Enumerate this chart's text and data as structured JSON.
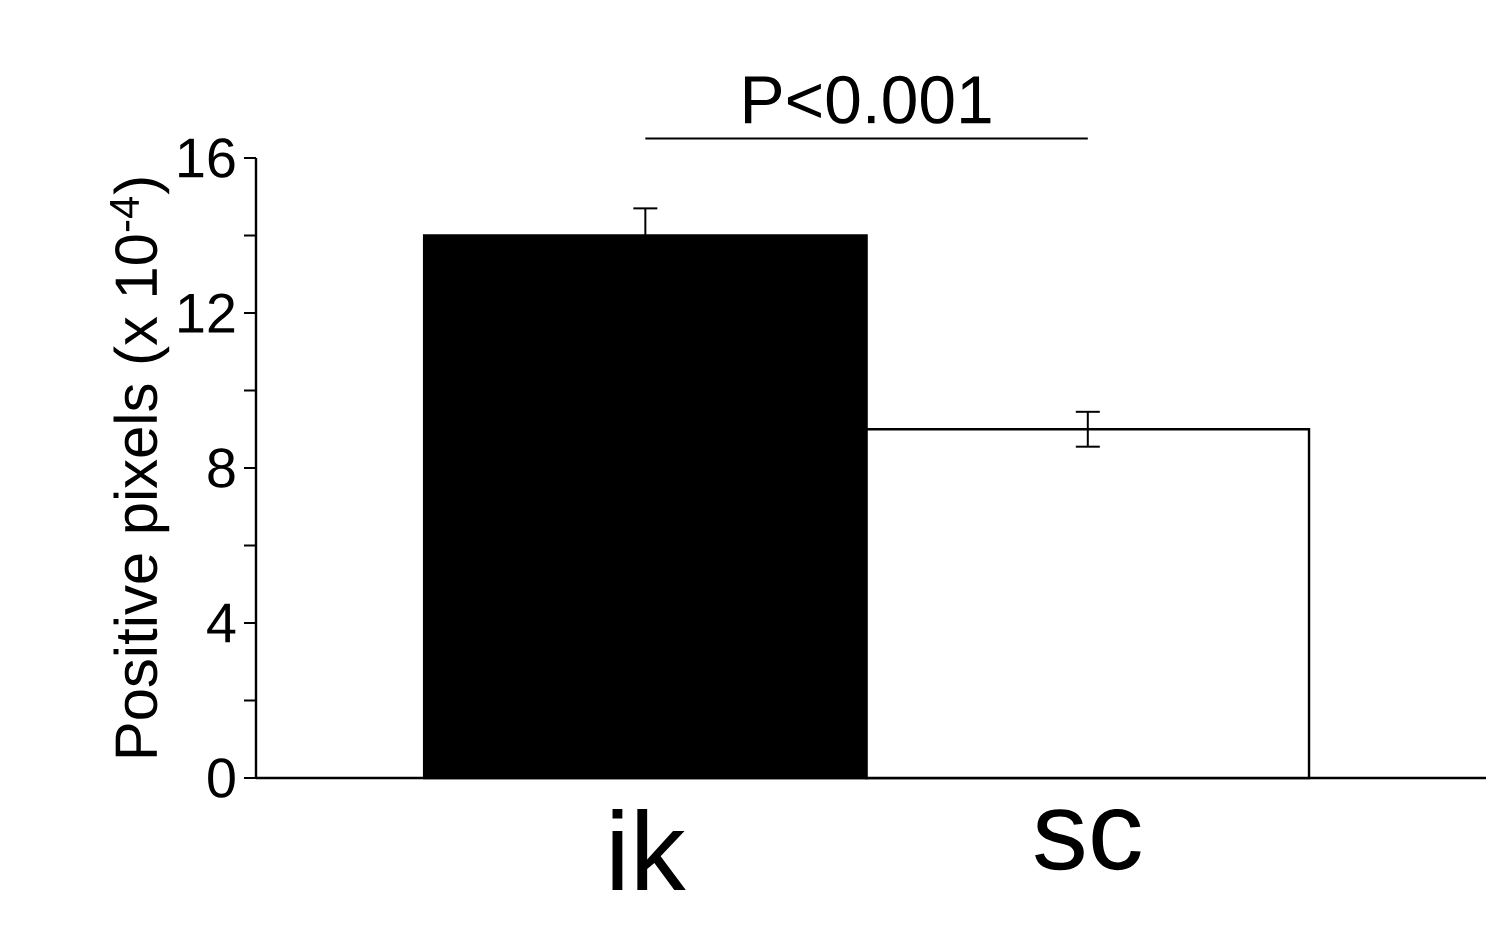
{
  "chart_data": {
    "type": "bar",
    "categories": [
      "ik",
      "sc"
    ],
    "colors": [
      "#000000",
      "#ffffff"
    ],
    "values": [
      14,
      9
    ],
    "errors": [
      0.7,
      0.45
    ],
    "ylabel": "Positive pixels (x 10$^{-4}$)",
    "ylim": [
      0,
      16
    ],
    "yticks": [
      0,
      {
        "value": 2,
        "label": null
      },
      4,
      {
        "value": 6,
        "label": null
      },
      8,
      {
        "value": 10,
        "label": null
      },
      12,
      {
        "value": 14,
        "label": null
      },
      16
    ],
    "annotations": [
      "P<0.001"
    ]
  }
}
